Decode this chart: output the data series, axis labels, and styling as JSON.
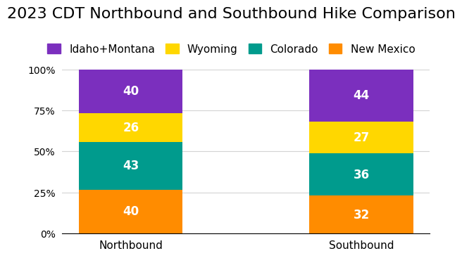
{
  "title": "2023 CDT Northbound and Southbound Hike Comparison",
  "categories": [
    "Northbound",
    "Southbound"
  ],
  "segments": [
    "New Mexico",
    "Colorado",
    "Wyoming",
    "Idaho+Montana"
  ],
  "values": {
    "Northbound": [
      40,
      43,
      26,
      40
    ],
    "Southbound": [
      32,
      36,
      27,
      44
    ]
  },
  "colors": [
    "#FF8C00",
    "#009B8D",
    "#FFD700",
    "#7B2FBE"
  ],
  "legend_labels": [
    "Idaho+Montana",
    "Wyoming",
    "Colorado",
    "New Mexico"
  ],
  "legend_colors": [
    "#7B2FBE",
    "#FFD700",
    "#009B8D",
    "#FF8C00"
  ],
  "bar_width": 0.45,
  "ylim": [
    0,
    100
  ],
  "yticks": [
    0,
    25,
    50,
    75,
    100
  ],
  "ytick_labels": [
    "0%",
    "25%",
    "50%",
    "75%",
    "100%"
  ],
  "title_fontsize": 16,
  "label_fontsize": 12,
  "legend_fontsize": 11,
  "background_color": "#ffffff",
  "text_color_light": "#ffffff"
}
